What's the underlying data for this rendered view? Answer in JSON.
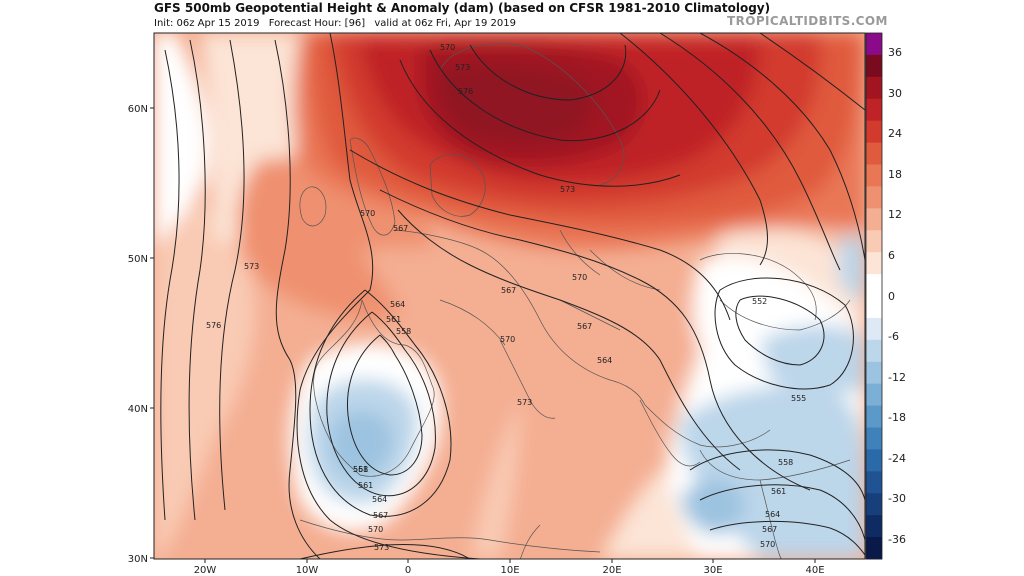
{
  "header": {
    "title": "GFS 500mb Geopotential Height & Anomaly (dam) (based on CFSR 1981-2010 Climatology)",
    "init": "Init: 06z Apr 15 2019",
    "forecast_hour": "Forecast Hour: [96]",
    "valid": "valid at 06z Fri, Apr 19 2019",
    "brand": "TROPICALTIDBITS.COM"
  },
  "axes": {
    "lat_labels": [
      "60N",
      "50N",
      "40N",
      "30N"
    ],
    "lon_labels": [
      "20W",
      "10W",
      "0",
      "10E",
      "20E",
      "30E",
      "40E"
    ]
  },
  "contour_labels": [
    "570",
    "573",
    "576",
    "573",
    "570",
    "567",
    "570",
    "567",
    "561",
    "564",
    "558",
    "570",
    "567",
    "573",
    "573",
    "576",
    "564",
    "561",
    "558",
    "558",
    "561",
    "564",
    "567",
    "570",
    "573",
    "552",
    "555",
    "558",
    "561",
    "564",
    "567",
    "570"
  ],
  "colorbar": {
    "labels": [
      "36",
      "30",
      "24",
      "18",
      "12",
      "6",
      "0",
      "-6",
      "-12",
      "-18",
      "-24",
      "-30",
      "-36"
    ],
    "colors": [
      "#8a0a8a",
      "#7a0a1e",
      "#a11420",
      "#bf2227",
      "#d23a2e",
      "#e05a3e",
      "#e97756",
      "#ef9170",
      "#f4ae92",
      "#f9cab4",
      "#fce4d6",
      "#ffffff",
      "#ffffff",
      "#dde9f4",
      "#bcd6ea",
      "#9cc3e0",
      "#7cafd5",
      "#5b99c9",
      "#3f82bb",
      "#2b6aa8",
      "#1f5393",
      "#173f7c",
      "#0e2c63",
      "#08194a"
    ]
  }
}
